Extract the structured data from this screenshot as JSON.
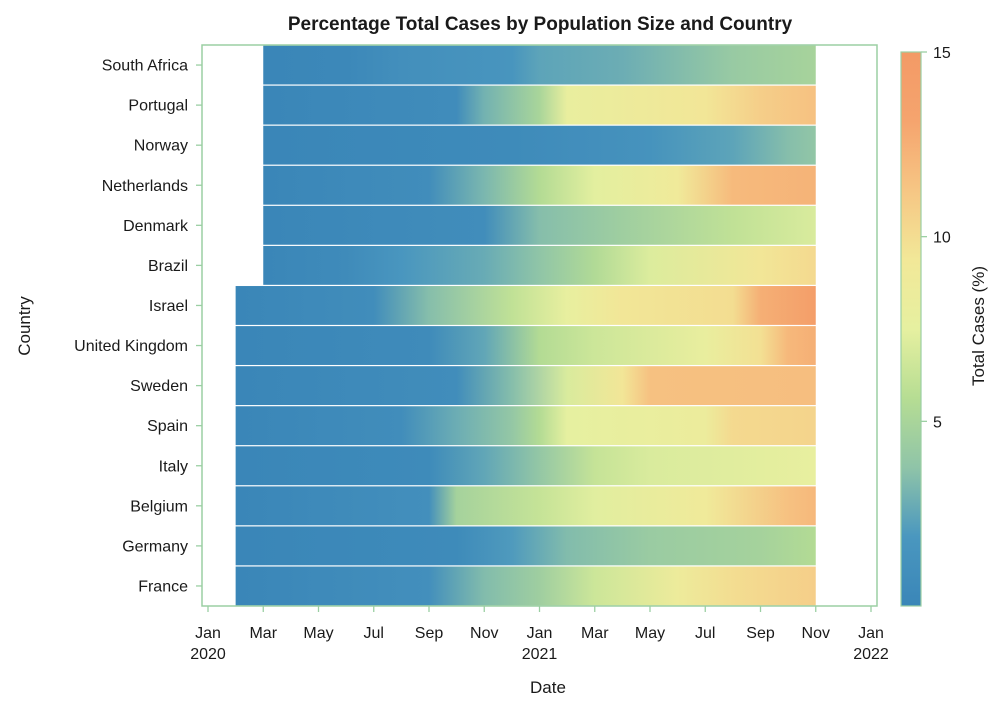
{
  "chart_data": {
    "type": "heatmap",
    "title": "Percentage Total Cases by Population Size and Country",
    "xlabel": "Date",
    "ylabel": "Country",
    "colorbar_label": "Total Cases (%)",
    "colorbar_range": [
      0,
      15
    ],
    "colorbar_ticks": [
      5,
      10,
      15
    ],
    "colorscale": [
      "#3a86b8",
      "#4a97bf",
      "#8fc4a8",
      "#b6dd93",
      "#e6f0a0",
      "#f2e898",
      "#f6c684",
      "#f5a46e",
      "#f39a66"
    ],
    "x_ticks": [
      "Jan\n2020",
      "Mar",
      "May",
      "Jul",
      "Sep",
      "Nov",
      "Jan\n2021",
      "Mar",
      "May",
      "Jul",
      "Sep",
      "Nov",
      "Jan\n2022"
    ],
    "x_range": [
      "2020-01",
      "2022-01"
    ],
    "grid": false,
    "countries": [
      {
        "name": "South Africa",
        "start": "2020-03",
        "end": "2021-11",
        "points": [
          [
            "2020-03",
            0.0
          ],
          [
            "2020-06",
            0.2
          ],
          [
            "2020-08",
            1.0
          ],
          [
            "2020-12",
            1.6
          ],
          [
            "2021-01",
            2.4
          ],
          [
            "2021-04",
            2.8
          ],
          [
            "2021-08",
            4.2
          ],
          [
            "2021-11",
            4.9
          ]
        ]
      },
      {
        "name": "Portugal",
        "start": "2020-03",
        "end": "2021-11",
        "points": [
          [
            "2020-03",
            0.0
          ],
          [
            "2020-10",
            0.7
          ],
          [
            "2020-11",
            3.0
          ],
          [
            "2021-01",
            5.0
          ],
          [
            "2021-02",
            8.0
          ],
          [
            "2021-07",
            9.5
          ],
          [
            "2021-09",
            10.8
          ],
          [
            "2021-11",
            11.5
          ]
        ]
      },
      {
        "name": "Norway",
        "start": "2020-03",
        "end": "2021-11",
        "points": [
          [
            "2020-03",
            0.0
          ],
          [
            "2020-12",
            0.5
          ],
          [
            "2021-03",
            1.0
          ],
          [
            "2021-05",
            1.4
          ],
          [
            "2021-08",
            2.4
          ],
          [
            "2021-10",
            3.5
          ],
          [
            "2021-11",
            3.9
          ]
        ]
      },
      {
        "name": "Netherlands",
        "start": "2020-03",
        "end": "2021-11",
        "points": [
          [
            "2020-03",
            0.0
          ],
          [
            "2020-09",
            0.8
          ],
          [
            "2020-11",
            3.2
          ],
          [
            "2021-01",
            5.5
          ],
          [
            "2021-03",
            7.4
          ],
          [
            "2021-06",
            9.0
          ],
          [
            "2021-08",
            11.9
          ],
          [
            "2021-11",
            12.3
          ]
        ]
      },
      {
        "name": "Denmark",
        "start": "2020-03",
        "end": "2021-11",
        "points": [
          [
            "2020-03",
            0.0
          ],
          [
            "2020-11",
            0.8
          ],
          [
            "2021-01",
            3.5
          ],
          [
            "2021-04",
            4.5
          ],
          [
            "2021-08",
            6.0
          ],
          [
            "2021-11",
            7.0
          ]
        ]
      },
      {
        "name": "Brazil",
        "start": "2020-03",
        "end": "2021-11",
        "points": [
          [
            "2020-03",
            0.0
          ],
          [
            "2020-06",
            0.6
          ],
          [
            "2020-08",
            1.8
          ],
          [
            "2020-11",
            2.7
          ],
          [
            "2021-01",
            3.8
          ],
          [
            "2021-03",
            5.4
          ],
          [
            "2021-05",
            7.1
          ],
          [
            "2021-09",
            9.5
          ],
          [
            "2021-11",
            10.2
          ]
        ]
      },
      {
        "name": "Israel",
        "start": "2020-02",
        "end": "2021-11",
        "points": [
          [
            "2020-02",
            0.0
          ],
          [
            "2020-07",
            0.8
          ],
          [
            "2020-09",
            3.5
          ],
          [
            "2020-12",
            6.0
          ],
          [
            "2021-02",
            7.8
          ],
          [
            "2021-04",
            9.5
          ],
          [
            "2021-08",
            10.0
          ],
          [
            "2021-09",
            12.5
          ],
          [
            "2021-11",
            14.2
          ]
        ]
      },
      {
        "name": "United Kingdom",
        "start": "2020-02",
        "end": "2021-11",
        "points": [
          [
            "2020-02",
            0.0
          ],
          [
            "2020-09",
            0.6
          ],
          [
            "2020-11",
            2.5
          ],
          [
            "2021-01",
            5.5
          ],
          [
            "2021-03",
            6.5
          ],
          [
            "2021-07",
            8.0
          ],
          [
            "2021-09",
            9.8
          ],
          [
            "2021-10",
            12.0
          ],
          [
            "2021-11",
            12.5
          ]
        ]
      },
      {
        "name": "Sweden",
        "start": "2020-02",
        "end": "2021-11",
        "points": [
          [
            "2020-02",
            0.0
          ],
          [
            "2020-10",
            0.8
          ],
          [
            "2020-12",
            3.5
          ],
          [
            "2021-02",
            7.0
          ],
          [
            "2021-04",
            9.5
          ],
          [
            "2021-05",
            11.5
          ],
          [
            "2021-11",
            11.7
          ]
        ]
      },
      {
        "name": "Spain",
        "start": "2020-02",
        "end": "2021-11",
        "points": [
          [
            "2020-02",
            0.0
          ],
          [
            "2020-08",
            0.8
          ],
          [
            "2020-10",
            2.8
          ],
          [
            "2020-12",
            4.0
          ],
          [
            "2021-01",
            5.5
          ],
          [
            "2021-02",
            7.5
          ],
          [
            "2021-07",
            8.5
          ],
          [
            "2021-08",
            10.2
          ],
          [
            "2021-11",
            10.5
          ]
        ]
      },
      {
        "name": "Italy",
        "start": "2020-02",
        "end": "2021-11",
        "points": [
          [
            "2020-02",
            0.0
          ],
          [
            "2020-09",
            0.5
          ],
          [
            "2020-11",
            2.5
          ],
          [
            "2021-01",
            4.0
          ],
          [
            "2021-03",
            6.2
          ],
          [
            "2021-05",
            7.0
          ],
          [
            "2021-11",
            7.8
          ]
        ]
      },
      {
        "name": "Belgium",
        "start": "2020-02",
        "end": "2021-11",
        "points": [
          [
            "2020-02",
            0.0
          ],
          [
            "2020-09",
            1.0
          ],
          [
            "2020-10",
            4.8
          ],
          [
            "2021-01",
            6.2
          ],
          [
            "2021-03",
            7.3
          ],
          [
            "2021-07",
            9.0
          ],
          [
            "2021-10",
            11.5
          ],
          [
            "2021-11",
            12.0
          ]
        ]
      },
      {
        "name": "Germany",
        "start": "2020-02",
        "end": "2021-11",
        "points": [
          [
            "2020-02",
            0.0
          ],
          [
            "2020-10",
            0.5
          ],
          [
            "2020-12",
            2.0
          ],
          [
            "2021-02",
            3.4
          ],
          [
            "2021-05",
            4.3
          ],
          [
            "2021-09",
            4.8
          ],
          [
            "2021-11",
            5.5
          ]
        ]
      },
      {
        "name": "France",
        "start": "2020-02",
        "end": "2021-11",
        "points": [
          [
            "2020-02",
            0.0
          ],
          [
            "2020-09",
            1.0
          ],
          [
            "2020-11",
            3.4
          ],
          [
            "2021-01",
            4.5
          ],
          [
            "2021-03",
            6.5
          ],
          [
            "2021-06",
            8.6
          ],
          [
            "2021-08",
            10.0
          ],
          [
            "2021-11",
            10.8
          ]
        ]
      }
    ]
  }
}
